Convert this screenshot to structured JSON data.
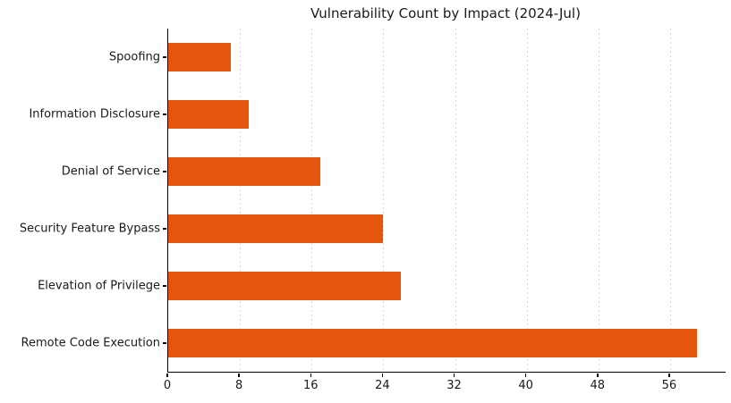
{
  "title": "Vulnerability Count by Impact (2024-Jul)",
  "colors": {
    "bar": "#E6550D",
    "grid": "#D8D8D8",
    "axis": "#000000",
    "text": "#1A1A1A",
    "background": "#FFFFFF"
  },
  "chart_data": {
    "type": "bar",
    "orientation": "horizontal",
    "title": "Vulnerability Count by Impact (2024-Jul)",
    "categories": [
      "Spoofing",
      "Information Disclosure",
      "Denial of Service",
      "Security Feature Bypass",
      "Elevation of Privilege",
      "Remote Code Execution"
    ],
    "values": [
      7,
      9,
      17,
      24,
      26,
      59
    ],
    "xlabel": "",
    "ylabel": "",
    "xlim": [
      0,
      62.2
    ],
    "xticks": [
      0,
      8,
      16,
      24,
      32,
      40,
      48,
      56
    ],
    "grid": "vertical-dashed",
    "legend": "none",
    "bar_color": "#E6550D"
  }
}
